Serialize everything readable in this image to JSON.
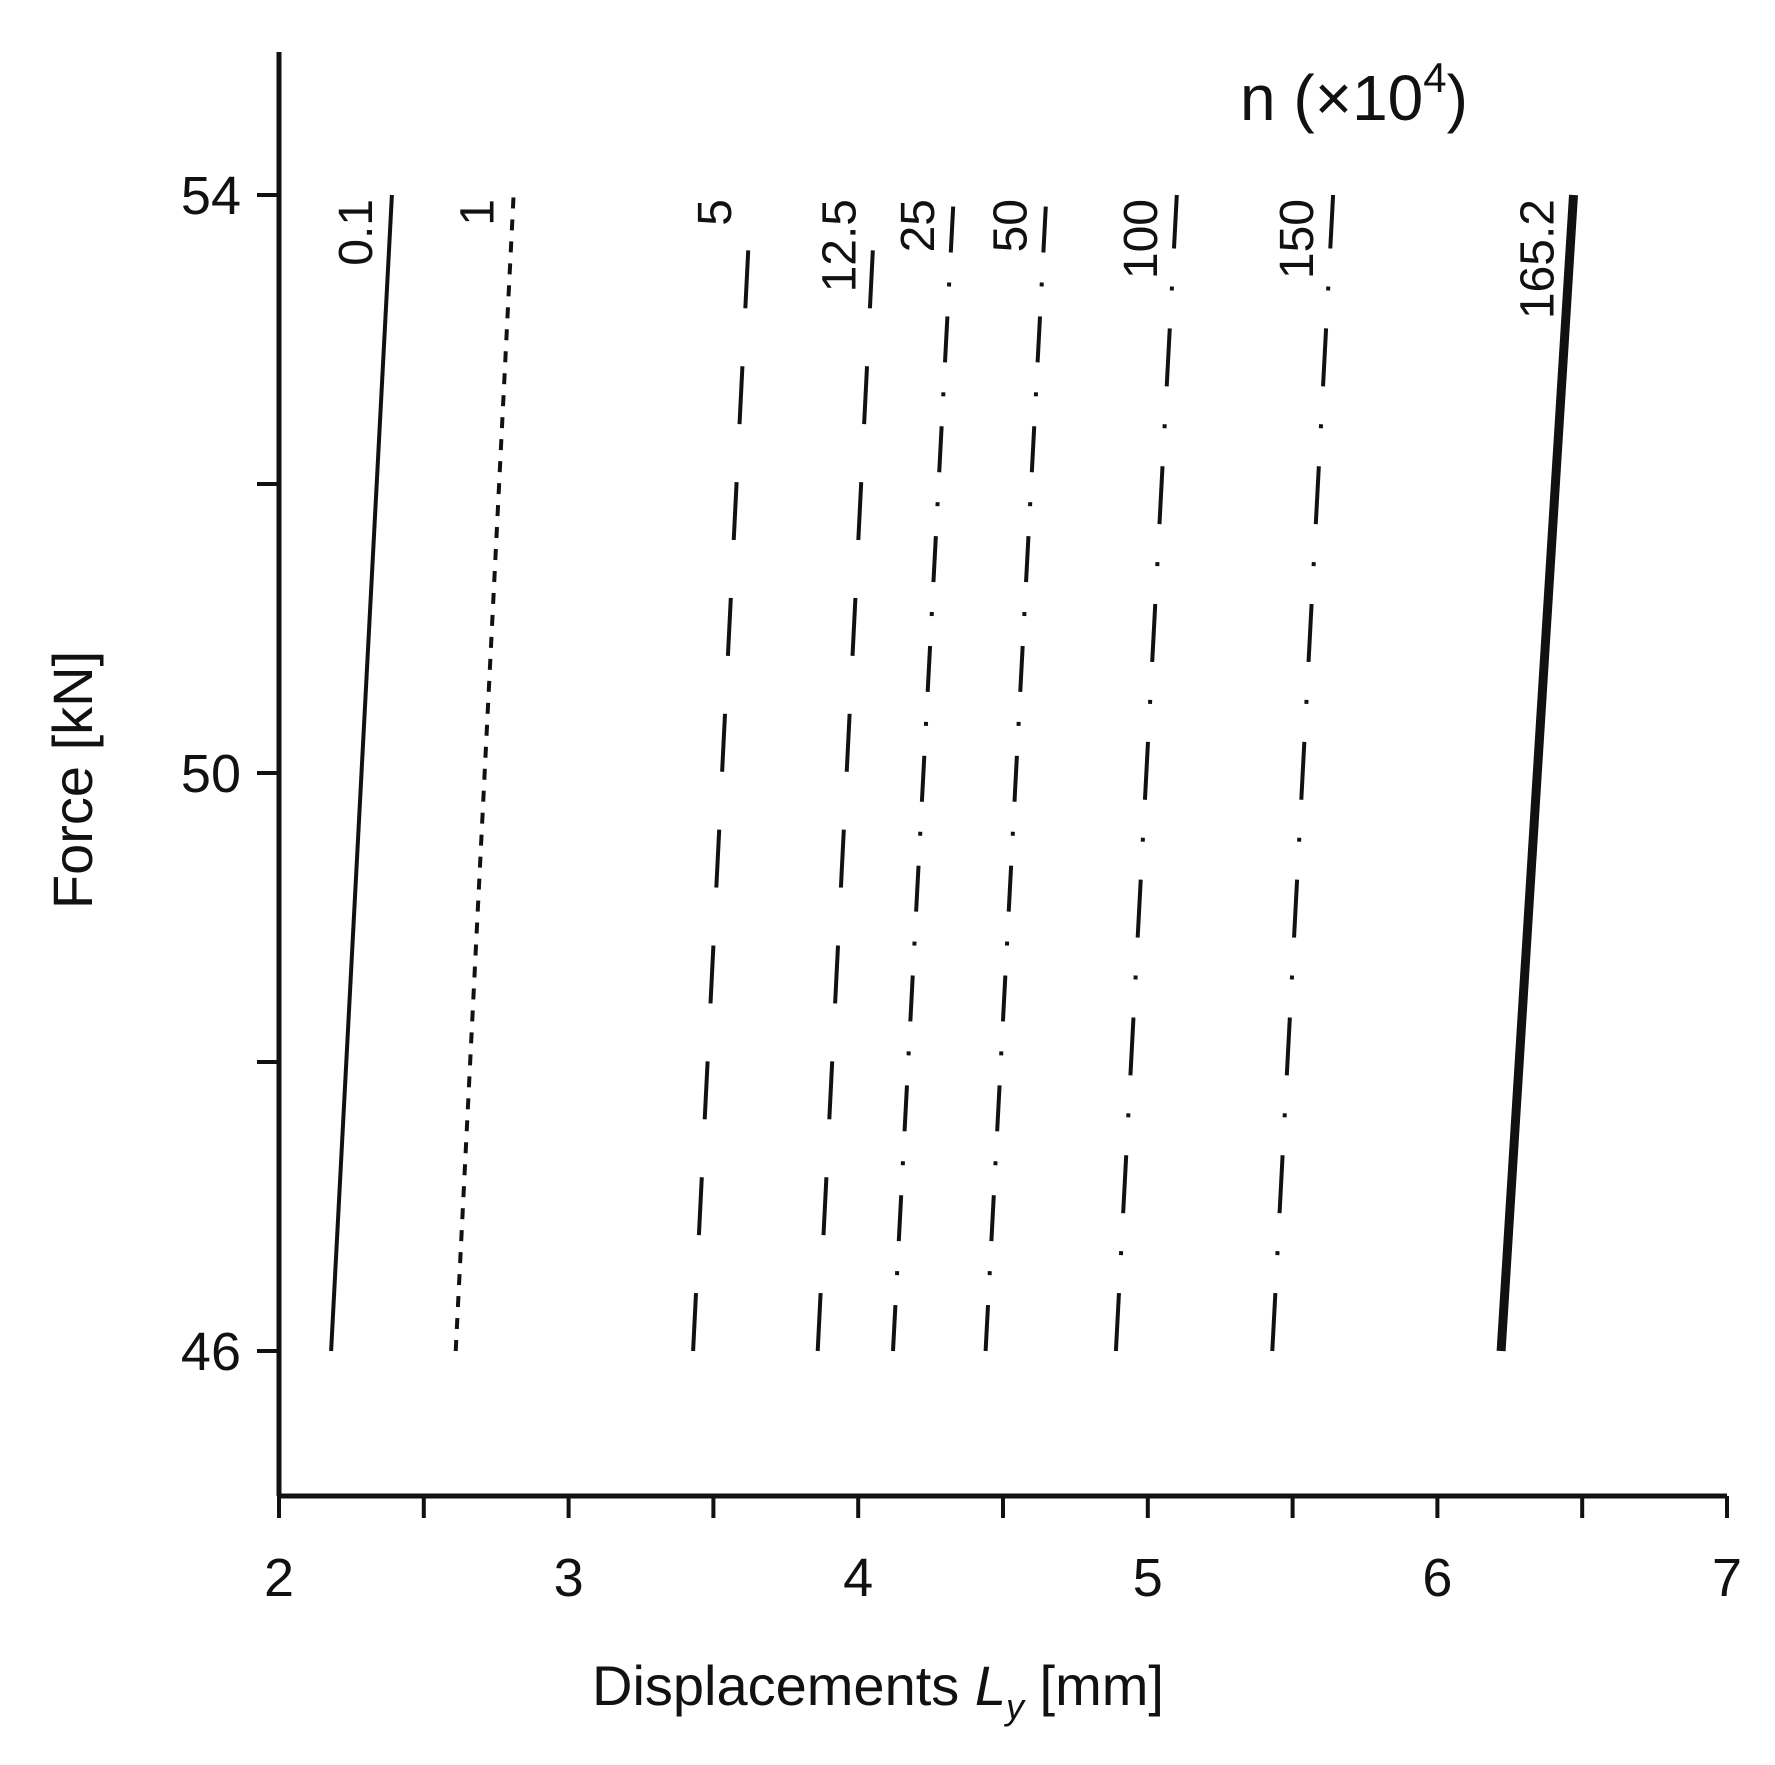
{
  "chart_data": {
    "type": "line",
    "xlabel": {
      "prefix": "Displacements ",
      "var": "L",
      "sub": "y",
      "suffix": " [mm]"
    },
    "ylabel": "Force [kN]",
    "legend_title": {
      "text": "n (×10",
      "sup": "4",
      "close": ")"
    },
    "xlim": [
      2,
      7
    ],
    "ylim": [
      44,
      56
    ],
    "x_ticks": [
      2,
      2.5,
      3,
      3.5,
      4,
      4.5,
      5,
      5.5,
      6,
      6.5,
      7
    ],
    "x_tick_labels": [
      "2",
      "3",
      "4",
      "5",
      "6",
      "7"
    ],
    "x_tick_label_values": [
      2,
      3,
      4,
      5,
      6,
      7
    ],
    "y_ticks": [
      46,
      48,
      50,
      52,
      54
    ],
    "y_tick_labels": [
      "46",
      "50",
      "54"
    ],
    "y_tick_label_values": [
      46,
      50,
      54
    ],
    "grid": false,
    "series": [
      {
        "name": "0.1",
        "line_style": "solid",
        "stroke_width": 4,
        "x": [
          2.18,
          2.39
        ],
        "y": [
          46,
          54
        ]
      },
      {
        "name": "1",
        "line_style": "dotted",
        "stroke_width": 4,
        "x": [
          2.61,
          2.81
        ],
        "y": [
          46,
          54
        ]
      },
      {
        "name": "5",
        "line_style": "long-dash",
        "stroke_width": 4,
        "x": [
          3.43,
          3.63
        ],
        "y": [
          46,
          54
        ]
      },
      {
        "name": "12.5",
        "line_style": "long-dash",
        "stroke_width": 4,
        "x": [
          3.86,
          4.06
        ],
        "y": [
          46,
          54
        ]
      },
      {
        "name": "25",
        "line_style": "dash-dot",
        "stroke_width": 4,
        "x": [
          4.12,
          4.33
        ],
        "y": [
          46,
          54
        ]
      },
      {
        "name": "50",
        "line_style": "dash-dot",
        "stroke_width": 4,
        "x": [
          4.44,
          4.65
        ],
        "y": [
          46,
          54
        ]
      },
      {
        "name": "100",
        "line_style": "long-dash-dot",
        "stroke_width": 4,
        "x": [
          4.89,
          5.1
        ],
        "y": [
          46,
          54
        ]
      },
      {
        "name": "150",
        "line_style": "long-dash-dot",
        "stroke_width": 4,
        "x": [
          5.43,
          5.64
        ],
        "y": [
          46,
          54
        ]
      },
      {
        "name": "165.2",
        "line_style": "solid",
        "stroke_width": 9,
        "x": [
          6.22,
          6.47
        ],
        "y": [
          46,
          54
        ]
      }
    ],
    "colors": {
      "ink": "#111111",
      "background": "#ffffff"
    }
  }
}
